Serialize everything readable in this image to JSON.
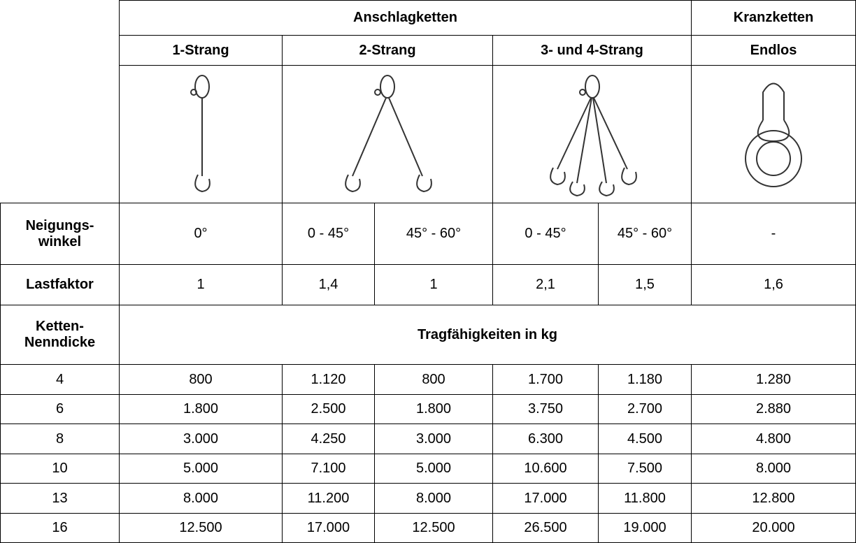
{
  "header": {
    "group_left": "Anschlagketten",
    "group_right": "Kranzketten",
    "strands": [
      "1-Strang",
      "2-Strang",
      "3- und 4-Strang",
      "Endlos"
    ]
  },
  "angle": {
    "label": [
      "Neigungs-",
      "winkel"
    ],
    "values": [
      "0°",
      "0 - 45°",
      "45° - 60°",
      "0 - 45°",
      "45° - 60°",
      "-"
    ]
  },
  "load_factor": {
    "label": "Lastfaktor",
    "values": [
      "1",
      "1,4",
      "1",
      "2,1",
      "1,5",
      "1,6"
    ]
  },
  "capacity": {
    "label": [
      "Ketten-",
      "Nenndicke"
    ],
    "caption": "Tragfähigkeiten in kg",
    "rows": [
      [
        "4",
        "800",
        "1.120",
        "800",
        "1.700",
        "1.180",
        "1.280"
      ],
      [
        "6",
        "1.800",
        "2.500",
        "1.800",
        "3.750",
        "2.700",
        "2.880"
      ],
      [
        "8",
        "3.000",
        "4.250",
        "3.000",
        "6.300",
        "4.500",
        "4.800"
      ],
      [
        "10",
        "5.000",
        "7.100",
        "5.000",
        "10.600",
        "7.500",
        "8.000"
      ],
      [
        "13",
        "8.000",
        "11.200",
        "8.000",
        "17.000",
        "11.800",
        "12.800"
      ],
      [
        "16",
        "12.500",
        "17.000",
        "12.500",
        "26.500",
        "19.000",
        "20.000"
      ]
    ]
  }
}
